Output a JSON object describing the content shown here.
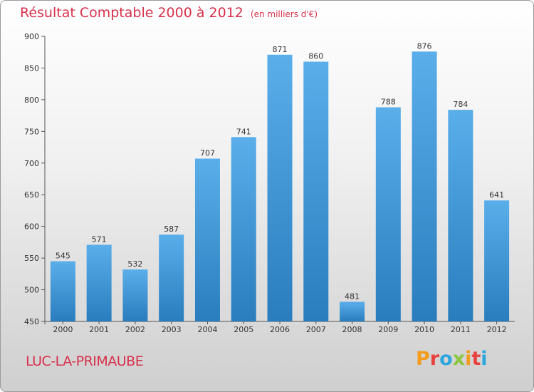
{
  "header": {
    "title": "Résultat Comptable 2000 à 2012",
    "unit": "(en milliers d'€)"
  },
  "footer": {
    "city": "LUC-LA-PRIMAUBE",
    "logo": "Proxiti",
    "logo_colors": [
      "#f39c1e",
      "#e8423f",
      "#2da6de",
      "#8cc63f",
      "#f39c1e",
      "#e8423f",
      "#2da6de"
    ]
  },
  "colors": {
    "title": "#d8304c",
    "bar_top": "#5aaeea",
    "bar_bottom": "#2a7dbd"
  },
  "chart_data": {
    "type": "bar",
    "title": "Résultat Comptable 2000 à 2012",
    "subtitle": "(en milliers d'€)",
    "xlabel": "",
    "ylabel": "",
    "categories": [
      "2000",
      "2001",
      "2002",
      "2003",
      "2004",
      "2005",
      "2006",
      "2007",
      "2008",
      "2009",
      "2010",
      "2011",
      "2012"
    ],
    "values": [
      545,
      571,
      532,
      587,
      707,
      741,
      871,
      860,
      481,
      788,
      876,
      784,
      641
    ],
    "ylim": [
      450,
      900
    ],
    "yticks": [
      450,
      500,
      550,
      600,
      650,
      700,
      750,
      800,
      850,
      900
    ],
    "grid": false,
    "legend": "none"
  }
}
